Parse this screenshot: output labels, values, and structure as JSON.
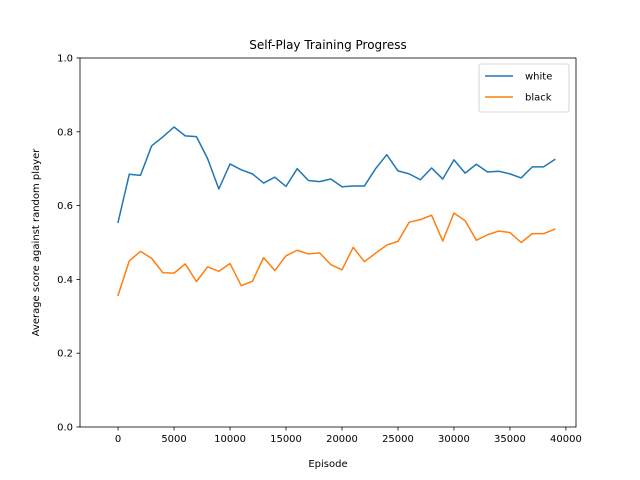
{
  "chart_data": {
    "type": "line",
    "title": "Self-Play Training Progress",
    "xlabel": "Episode",
    "ylabel": "Average score against random player",
    "xlim": [
      -3400,
      40900
    ],
    "ylim": [
      0.0,
      1.0
    ],
    "xticks": [
      0,
      5000,
      10000,
      15000,
      20000,
      25000,
      30000,
      35000,
      40000
    ],
    "xtick_labels": [
      "0",
      "5000",
      "10000",
      "15000",
      "20000",
      "25000",
      "30000",
      "35000",
      "40000"
    ],
    "yticks": [
      0.0,
      0.2,
      0.4,
      0.6,
      0.8,
      1.0
    ],
    "ytick_labels": [
      "0.0",
      "0.2",
      "0.4",
      "0.6",
      "0.8",
      "1.0"
    ],
    "grid": false,
    "legend_position": "top-right",
    "x": [
      0,
      1000,
      2000,
      3000,
      4000,
      5000,
      6000,
      7000,
      8000,
      9000,
      10000,
      11000,
      12000,
      13000,
      14000,
      15000,
      16000,
      17000,
      18000,
      19000,
      20000,
      21000,
      22000,
      23000,
      24000,
      25000,
      26000,
      27000,
      28000,
      29000,
      30000,
      31000,
      32000,
      33000,
      34000,
      35000,
      36000,
      37000,
      38000,
      39000
    ],
    "series": [
      {
        "name": "white",
        "color": "#1f77b4",
        "values": [
          0.555,
          0.685,
          0.682,
          0.762,
          0.786,
          0.813,
          0.789,
          0.787,
          0.727,
          0.645,
          0.713,
          0.697,
          0.686,
          0.661,
          0.677,
          0.652,
          0.7,
          0.668,
          0.665,
          0.672,
          0.651,
          0.653,
          0.653,
          0.7,
          0.738,
          0.694,
          0.686,
          0.67,
          0.702,
          0.672,
          0.724,
          0.688,
          0.712,
          0.691,
          0.693,
          0.686,
          0.675,
          0.705,
          0.705,
          0.725
        ]
      },
      {
        "name": "black",
        "color": "#ff7f0e",
        "values": [
          0.357,
          0.45,
          0.476,
          0.457,
          0.418,
          0.417,
          0.442,
          0.394,
          0.434,
          0.422,
          0.443,
          0.383,
          0.395,
          0.459,
          0.424,
          0.464,
          0.479,
          0.469,
          0.472,
          0.44,
          0.426,
          0.487,
          0.448,
          0.471,
          0.493,
          0.503,
          0.555,
          0.562,
          0.574,
          0.504,
          0.58,
          0.559,
          0.506,
          0.521,
          0.531,
          0.527,
          0.5,
          0.524,
          0.524,
          0.536
        ]
      }
    ]
  }
}
